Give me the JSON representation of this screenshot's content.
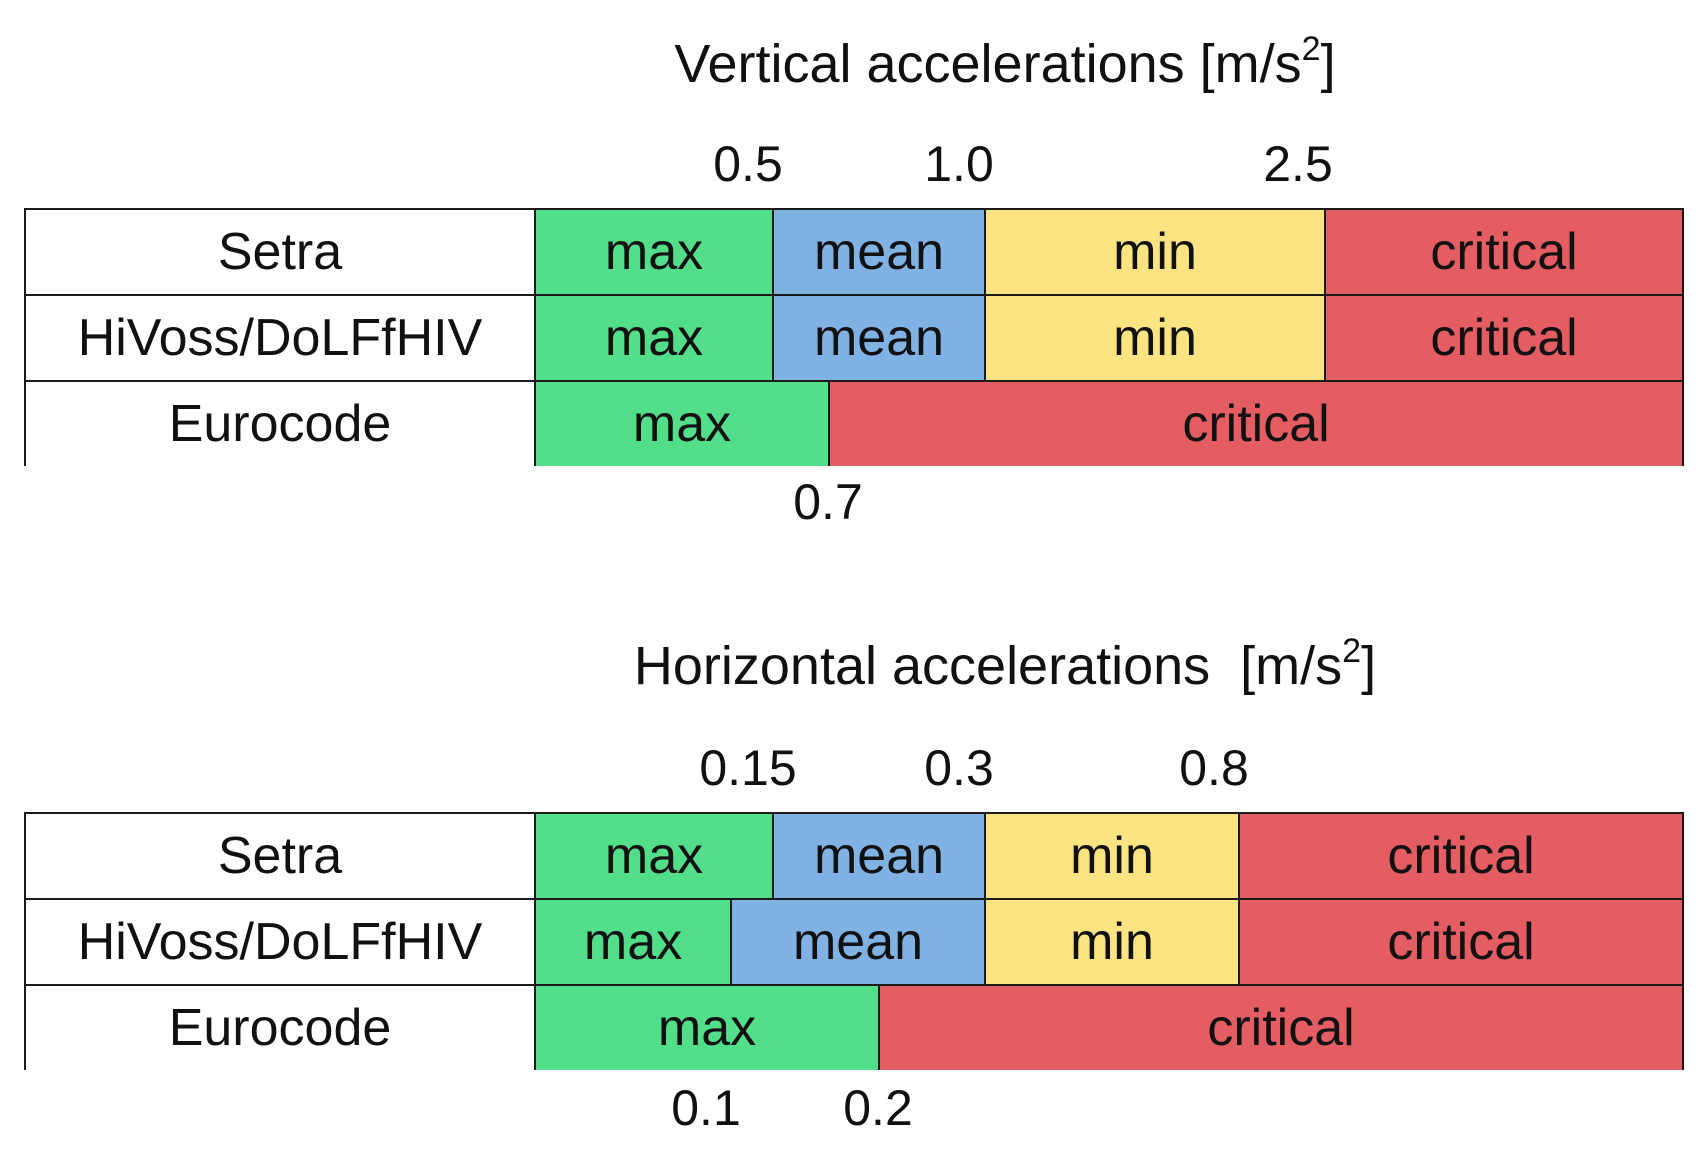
{
  "colors": {
    "max": "#53DE8A",
    "mean": "#80B3E3",
    "min": "#FCE483",
    "critical": "#E35D62"
  },
  "panels": [
    {
      "title": "Vertical accelerations [m/s",
      "title_sup": "2",
      "title_end": "]",
      "top_ticks": [
        "0.5",
        "1.0",
        "2.5"
      ],
      "bottom_ticks": [
        "0.7"
      ],
      "rows": [
        {
          "label": "Setra",
          "segments": [
            {
              "label": "max",
              "class": "max",
              "upper": "0.5"
            },
            {
              "label": "mean",
              "class": "mean",
              "upper": "1.0"
            },
            {
              "label": "min",
              "class": "min",
              "upper": "2.5"
            },
            {
              "label": "critical",
              "class": "critical",
              "upper": null
            }
          ]
        },
        {
          "label": "HiVoss/DoLFfHIV",
          "segments": [
            {
              "label": "max",
              "class": "max",
              "upper": "0.5"
            },
            {
              "label": "mean",
              "class": "mean",
              "upper": "1.0"
            },
            {
              "label": "min",
              "class": "min",
              "upper": "2.5"
            },
            {
              "label": "critical",
              "class": "critical",
              "upper": null
            }
          ]
        },
        {
          "label": "Eurocode",
          "segments": [
            {
              "label": "max",
              "class": "max",
              "upper": "0.7"
            },
            {
              "label": "critical",
              "class": "critical",
              "upper": null
            }
          ]
        }
      ]
    },
    {
      "title": "Horizontal accelerations  [m/s",
      "title_sup": "2",
      "title_end": "]",
      "top_ticks": [
        "0.15",
        "0.3",
        "0.8"
      ],
      "bottom_ticks": [
        "0.1",
        "0.2"
      ],
      "rows": [
        {
          "label": "Setra",
          "segments": [
            {
              "label": "max",
              "class": "max",
              "upper": "0.15"
            },
            {
              "label": "mean",
              "class": "mean",
              "upper": "0.3"
            },
            {
              "label": "min",
              "class": "min",
              "upper": "0.8"
            },
            {
              "label": "critical",
              "class": "critical",
              "upper": null
            }
          ]
        },
        {
          "label": "HiVoss/DoLFfHIV",
          "segments": [
            {
              "label": "max",
              "class": "max",
              "upper": "0.1"
            },
            {
              "label": "mean",
              "class": "mean",
              "upper": "0.3"
            },
            {
              "label": "min",
              "class": "min",
              "upper": "0.8"
            },
            {
              "label": "critical",
              "class": "critical",
              "upper": null
            }
          ]
        },
        {
          "label": "Eurocode",
          "segments": [
            {
              "label": "max",
              "class": "max",
              "upper": "0.2"
            },
            {
              "label": "critical",
              "class": "critical",
              "upper": null
            }
          ]
        }
      ]
    }
  ]
}
